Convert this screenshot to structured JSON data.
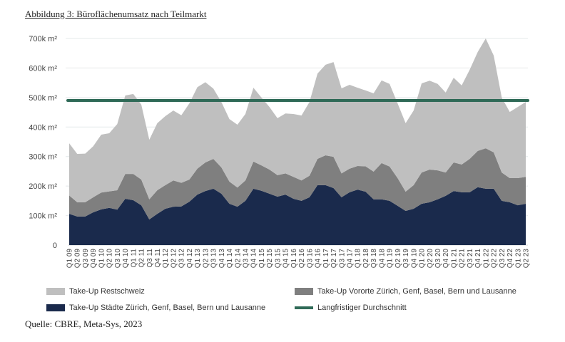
{
  "chart_data": {
    "type": "area",
    "stacked": true,
    "title": "Abbildung 3: Büroflächenumsatz nach Teilmarkt",
    "source": "Quelle: CBRE, Meta-Sys, 2023",
    "xlabel": "",
    "ylabel": "",
    "ylim": [
      0,
      700
    ],
    "y_ticks": [
      "0",
      "100k m²",
      "200k m²",
      "300k m²",
      "400k m²",
      "500k m²",
      "600k m²",
      "700k m²"
    ],
    "y_tick_values": [
      0,
      100,
      200,
      300,
      400,
      500,
      600,
      700
    ],
    "grid": true,
    "legend_position": "bottom",
    "categories": [
      "Q1 09",
      "Q2 09",
      "Q3 09",
      "Q4 09",
      "Q1 10",
      "Q2 10",
      "Q3 10",
      "Q4 10",
      "Q1 11",
      "Q2 11",
      "Q3 11",
      "Q4 11",
      "Q1 12",
      "Q2 12",
      "Q3 12",
      "Q4 12",
      "Q1 13",
      "Q2 13",
      "Q3 13",
      "Q4 13",
      "Q1 14",
      "Q2 14",
      "Q3 14",
      "Q4 14",
      "Q1 15",
      "Q2 15",
      "Q3 15",
      "Q4 15",
      "Q1 16",
      "Q2 16",
      "Q3 16",
      "Q4 16",
      "Q1 17",
      "Q2 17",
      "Q3 17",
      "Q4 17",
      "Q1 18",
      "Q2 18",
      "Q3 18",
      "Q4 18",
      "Q1 19",
      "Q2 19",
      "Q3 19",
      "Q4 19",
      "Q1 20",
      "Q2 20",
      "Q3 20",
      "Q4 20",
      "Q1 21",
      "Q2 21",
      "Q3 21",
      "Q4 21",
      "Q1 22",
      "Q2 22",
      "Q3 22",
      "Q4 22",
      "Q1 23",
      "Q2 23"
    ],
    "series": [
      {
        "name": "Take-Up Städte Zürich, Genf, Basel, Bern und Lausanne",
        "color": "#1a2a4c",
        "values": [
          106,
          97,
          97,
          111,
          121,
          126,
          120,
          157,
          152,
          135,
          87,
          106,
          123,
          130,
          131,
          147,
          171,
          183,
          191,
          174,
          140,
          130,
          150,
          191,
          184,
          174,
          164,
          171,
          157,
          150,
          162,
          203,
          203,
          193,
          162,
          179,
          188,
          181,
          155,
          155,
          150,
          133,
          116,
          123,
          140,
          145,
          155,
          167,
          183,
          179,
          179,
          196,
          191,
          191,
          150,
          145,
          135,
          140
        ]
      },
      {
        "name": "Take-Up Vororte Zürich, Genf, Basel, Bern und Lausanne",
        "color": "#7f7f7f",
        "values": [
          62,
          48,
          48,
          51,
          57,
          56,
          66,
          84,
          89,
          87,
          68,
          80,
          80,
          89,
          80,
          75,
          88,
          97,
          101,
          89,
          75,
          65,
          69,
          92,
          86,
          82,
          73,
          72,
          74,
          69,
          73,
          89,
          101,
          106,
          81,
          80,
          80,
          86,
          94,
          123,
          116,
          94,
          65,
          80,
          106,
          111,
          98,
          79,
          97,
          94,
          113,
          123,
          137,
          123,
          96,
          82,
          92,
          91
        ]
      },
      {
        "name": "Take-Up Restschweiz",
        "color": "#bfbfbf",
        "values": [
          177,
          164,
          165,
          173,
          196,
          197,
          224,
          266,
          271,
          254,
          202,
          227,
          234,
          237,
          229,
          258,
          276,
          272,
          238,
          222,
          212,
          213,
          225,
          250,
          230,
          212,
          193,
          203,
          213,
          220,
          250,
          289,
          307,
          321,
          288,
          284,
          265,
          257,
          265,
          280,
          280,
          253,
          232,
          253,
          302,
          301,
          293,
          271,
          287,
          268,
          302,
          335,
          372,
          328,
          254,
          224,
          241,
          254
        ]
      }
    ],
    "reference_line": {
      "name": "Langfristiger Durchschnitt",
      "value": 490,
      "color": "#2f6a57"
    },
    "legend": [
      {
        "label": "Take-Up Restschweiz",
        "color": "#bfbfbf",
        "kind": "area"
      },
      {
        "label": "Take-Up Vororte Zürich, Genf, Basel, Bern und Lausanne",
        "color": "#7f7f7f",
        "kind": "area"
      },
      {
        "label": "Take-Up Städte Zürich, Genf, Basel, Bern und Lausanne",
        "color": "#1a2a4c",
        "kind": "area"
      },
      {
        "label": "Langfristiger Durchschnitt",
        "color": "#2f6a57",
        "kind": "line"
      }
    ]
  }
}
